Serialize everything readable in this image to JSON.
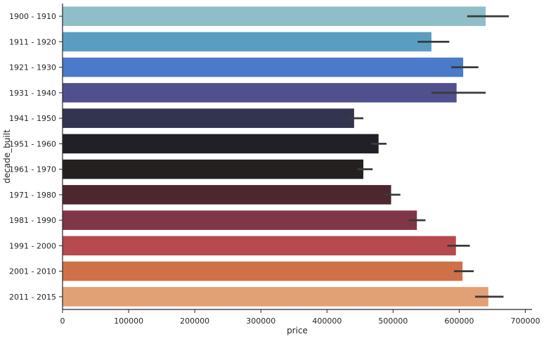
{
  "chart_data": {
    "type": "bar",
    "orientation": "horizontal",
    "title": "",
    "xlabel": "price",
    "ylabel": "decade_built",
    "xlim": [
      0,
      710000
    ],
    "xticks": [
      0,
      100000,
      200000,
      300000,
      400000,
      500000,
      600000,
      700000
    ],
    "xtick_labels": [
      "0",
      "100000",
      "200000",
      "300000",
      "400000",
      "500000",
      "600000",
      "700000"
    ],
    "categories": [
      "1900 - 1910",
      "1911 - 1920",
      "1921 - 1930",
      "1931 - 1940",
      "1941 - 1950",
      "1951 - 1960",
      "1961 - 1970",
      "1971 - 1980",
      "1981 - 1990",
      "1991 - 2000",
      "2001 - 2010",
      "2011 - 2015"
    ],
    "values": [
      640000,
      558000,
      606000,
      596000,
      441000,
      478000,
      455000,
      497000,
      536000,
      595000,
      605000,
      644000
    ],
    "ci_low": [
      612000,
      537000,
      588000,
      558000,
      431000,
      467000,
      446000,
      487000,
      524000,
      582000,
      592000,
      624000
    ],
    "ci_high": [
      675000,
      585000,
      629000,
      640000,
      455000,
      490000,
      469000,
      511000,
      549000,
      616000,
      622000,
      667000
    ],
    "colors": [
      "#8fbec8",
      "#5b9dc2",
      "#4a7ac9",
      "#51508f",
      "#33344f",
      "#202026",
      "#252020",
      "#4d272f",
      "#7f3647",
      "#b64a4f",
      "#d07049",
      "#e2a075"
    ],
    "grid": false,
    "legend": "none"
  }
}
